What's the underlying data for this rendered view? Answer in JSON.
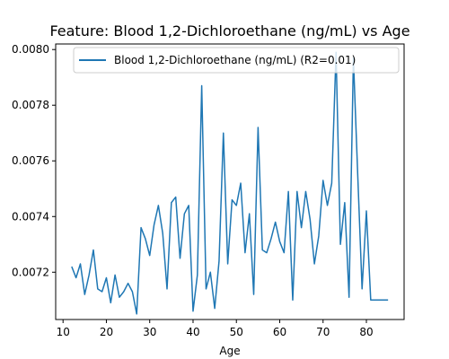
{
  "chart_data": {
    "type": "line",
    "title": "Feature: Blood 1,2-Dichloroethane (ng/mL) vs Age",
    "xlabel": "Age",
    "ylabel": "",
    "xlim": [
      8.3,
      88.7
    ],
    "ylim": [
      0.00703,
      0.00802
    ],
    "xticks": [
      10,
      20,
      30,
      40,
      50,
      60,
      70,
      80
    ],
    "yticks": [
      0.0072,
      0.0074,
      0.0076,
      0.0078,
      0.008
    ],
    "ytick_labels": [
      "0.0072",
      "0.0074",
      "0.0076",
      "0.0078",
      "0.0080"
    ],
    "grid": false,
    "legend_position": "top-right",
    "series": [
      {
        "name": "Blood 1,2-Dichloroethane (ng/mL) (R2=0.01)",
        "color": "#1f77b4",
        "x": [
          12,
          13,
          14,
          15,
          16,
          17,
          18,
          19,
          20,
          21,
          22,
          23,
          24,
          25,
          26,
          27,
          28,
          29,
          30,
          31,
          32,
          33,
          34,
          35,
          36,
          37,
          38,
          39,
          40,
          41,
          42,
          43,
          44,
          45,
          46,
          47,
          48,
          49,
          50,
          51,
          52,
          53,
          54,
          55,
          56,
          57,
          58,
          59,
          60,
          61,
          62,
          63,
          64,
          65,
          66,
          67,
          68,
          69,
          70,
          71,
          72,
          73,
          74,
          75,
          76,
          77,
          78,
          79,
          80,
          81,
          82,
          83,
          84,
          85
        ],
        "y": [
          0.00722,
          0.00718,
          0.00723,
          0.00712,
          0.00719,
          0.00728,
          0.00714,
          0.00713,
          0.00718,
          0.00709,
          0.00719,
          0.00711,
          0.00713,
          0.00716,
          0.00713,
          0.00705,
          0.00736,
          0.00732,
          0.00726,
          0.00737,
          0.00744,
          0.00734,
          0.00714,
          0.00745,
          0.00747,
          0.00725,
          0.00741,
          0.00744,
          0.00706,
          0.00719,
          0.00787,
          0.00714,
          0.0072,
          0.00707,
          0.00724,
          0.0077,
          0.00723,
          0.00746,
          0.00744,
          0.00752,
          0.00727,
          0.00741,
          0.00712,
          0.00772,
          0.00728,
          0.00727,
          0.00732,
          0.00738,
          0.00731,
          0.00727,
          0.00749,
          0.0071,
          0.00749,
          0.00736,
          0.00749,
          0.00739,
          0.00723,
          0.00733,
          0.00753,
          0.00744,
          0.00752,
          0.00799,
          0.0073,
          0.00745,
          0.00711,
          0.00797,
          0.00755,
          0.00714,
          0.00742,
          0.0071,
          0.0071,
          0.0071,
          0.0071,
          0.0071
        ]
      }
    ]
  }
}
